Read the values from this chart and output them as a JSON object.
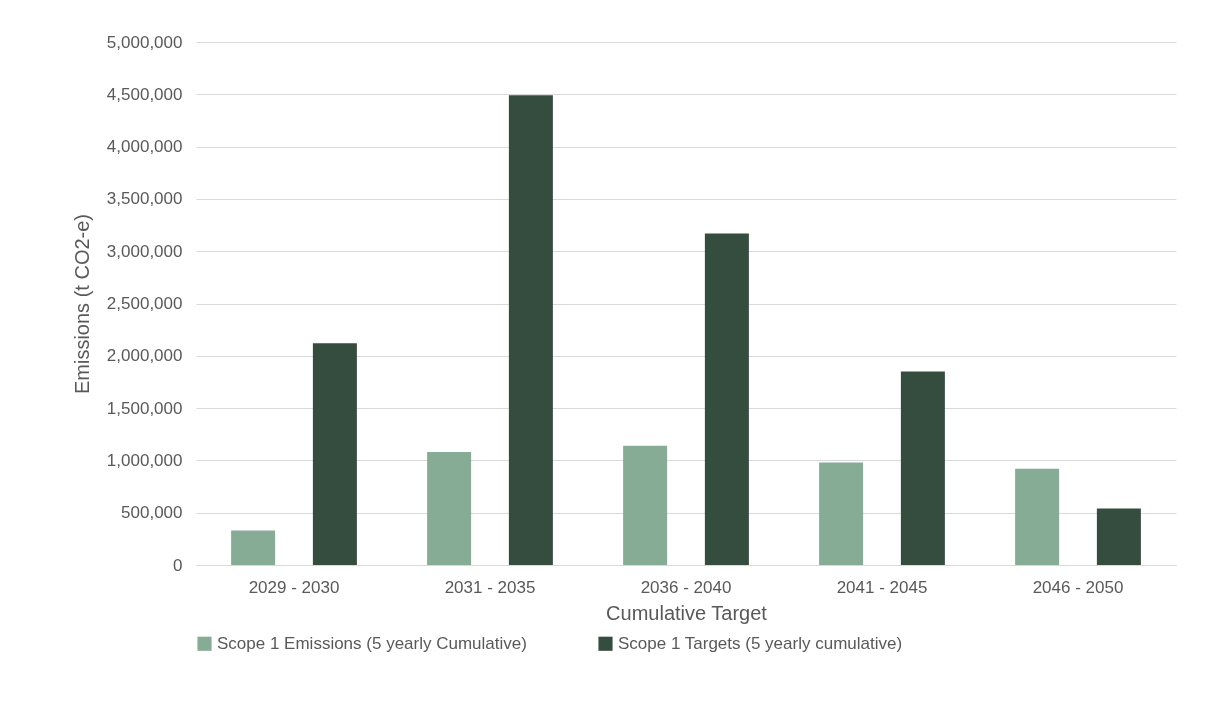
{
  "chart_data": {
    "type": "bar",
    "xlabel": "Cumulative Target",
    "ylabel": "Emissions (t CO2-e)",
    "categories": [
      "2029 - 2030",
      "2031 - 2035",
      "2036 - 2040",
      "2041 - 2045",
      "2046 - 2050"
    ],
    "series": [
      {
        "name": "Scope 1 Emissions (5 yearly Cumulative)",
        "color": "#86ac95",
        "values": [
          330000,
          1080000,
          1140000,
          980000,
          920000
        ]
      },
      {
        "name": "Scope 1 Targets (5 yearly cumulative)",
        "color": "#354d3f",
        "values": [
          2120000,
          4490000,
          3170000,
          1850000,
          540000
        ]
      }
    ],
    "ylim": [
      0,
      5000000
    ],
    "yticks": [
      0,
      {
        "value": 500000,
        "label": "500,000"
      },
      {
        "value": 1000000,
        "label": "1,000,000"
      },
      {
        "value": 1500000,
        "label": "1,500,000"
      },
      {
        "value": 2000000,
        "label": "2,000,000"
      },
      {
        "value": 2500000,
        "label": "2,500,000"
      },
      {
        "value": 3000000,
        "label": "3,000,000"
      },
      {
        "value": 3500000,
        "label": "3,500,000"
      },
      {
        "value": 4000000,
        "label": "4,000,000"
      },
      {
        "value": 4500000,
        "label": "4,500,000"
      },
      {
        "value": 5000000,
        "label": "5,000,000"
      }
    ],
    "grid": "y",
    "legend": "bottom"
  }
}
